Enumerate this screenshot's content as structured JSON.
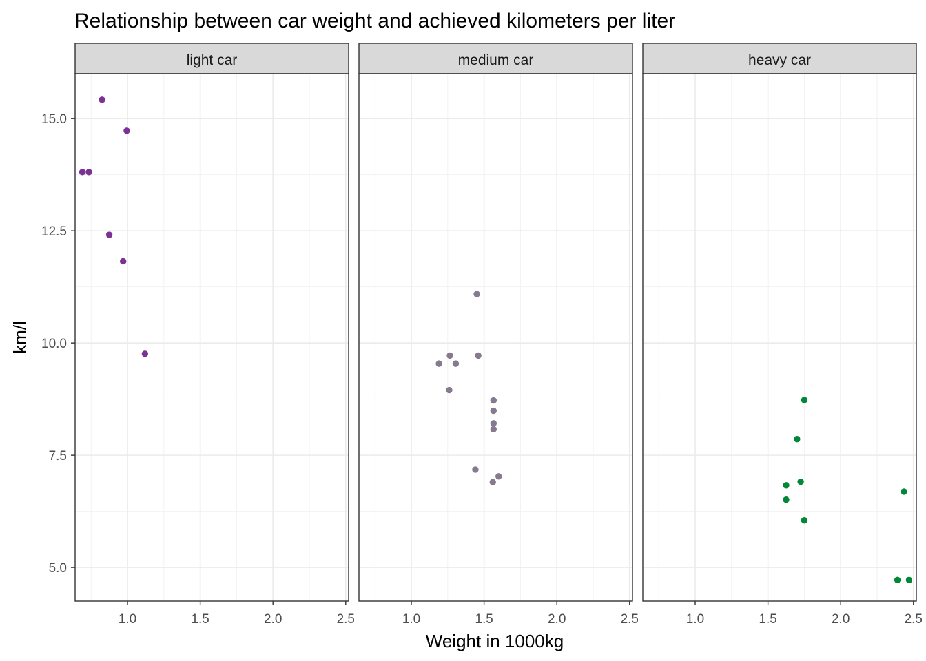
{
  "chart_data": {
    "type": "scatter",
    "title": "Relationship between car weight and achieved kilometers per liter",
    "xlabel": "Weight in 1000kg",
    "ylabel": "km/l",
    "xlim": [
      0.64,
      2.52
    ],
    "ylim": [
      4.25,
      16.0
    ],
    "xticks": [
      1.0,
      1.5,
      2.0,
      2.5
    ],
    "xtick_labels": [
      "1.0",
      "1.5",
      "2.0",
      "2.5"
    ],
    "yticks": [
      5.0,
      7.5,
      10.0,
      12.5,
      15.0
    ],
    "ytick_labels": [
      "5.0",
      "7.5",
      "10.0",
      "12.5",
      "15.0"
    ],
    "grid": true,
    "facets": [
      {
        "label": "light car",
        "color": "#7B3294",
        "points": [
          {
            "x": 0.825,
            "y": 15.42
          },
          {
            "x": 0.995,
            "y": 14.73
          },
          {
            "x": 0.69,
            "y": 13.81
          },
          {
            "x": 0.735,
            "y": 13.81
          },
          {
            "x": 0.875,
            "y": 12.41
          },
          {
            "x": 0.97,
            "y": 11.82
          },
          {
            "x": 1.12,
            "y": 9.76
          }
        ]
      },
      {
        "label": "medium car",
        "color": "#857A8E",
        "points": [
          {
            "x": 1.45,
            "y": 11.09
          },
          {
            "x": 1.265,
            "y": 9.72
          },
          {
            "x": 1.46,
            "y": 9.72
          },
          {
            "x": 1.19,
            "y": 9.54
          },
          {
            "x": 1.305,
            "y": 9.54
          },
          {
            "x": 1.26,
            "y": 8.95
          },
          {
            "x": 1.565,
            "y": 8.72
          },
          {
            "x": 1.565,
            "y": 8.49
          },
          {
            "x": 1.565,
            "y": 8.21
          },
          {
            "x": 1.565,
            "y": 8.08
          },
          {
            "x": 1.44,
            "y": 7.18
          },
          {
            "x": 1.6,
            "y": 7.03
          },
          {
            "x": 1.56,
            "y": 6.9
          }
        ]
      },
      {
        "label": "heavy car",
        "color": "#008837",
        "points": [
          {
            "x": 1.75,
            "y": 8.73
          },
          {
            "x": 1.7,
            "y": 7.86
          },
          {
            "x": 1.725,
            "y": 6.91
          },
          {
            "x": 1.625,
            "y": 6.83
          },
          {
            "x": 1.625,
            "y": 6.51
          },
          {
            "x": 1.75,
            "y": 6.05
          },
          {
            "x": 2.435,
            "y": 6.69
          },
          {
            "x": 2.39,
            "y": 4.72
          },
          {
            "x": 2.47,
            "y": 4.72
          }
        ]
      }
    ]
  }
}
